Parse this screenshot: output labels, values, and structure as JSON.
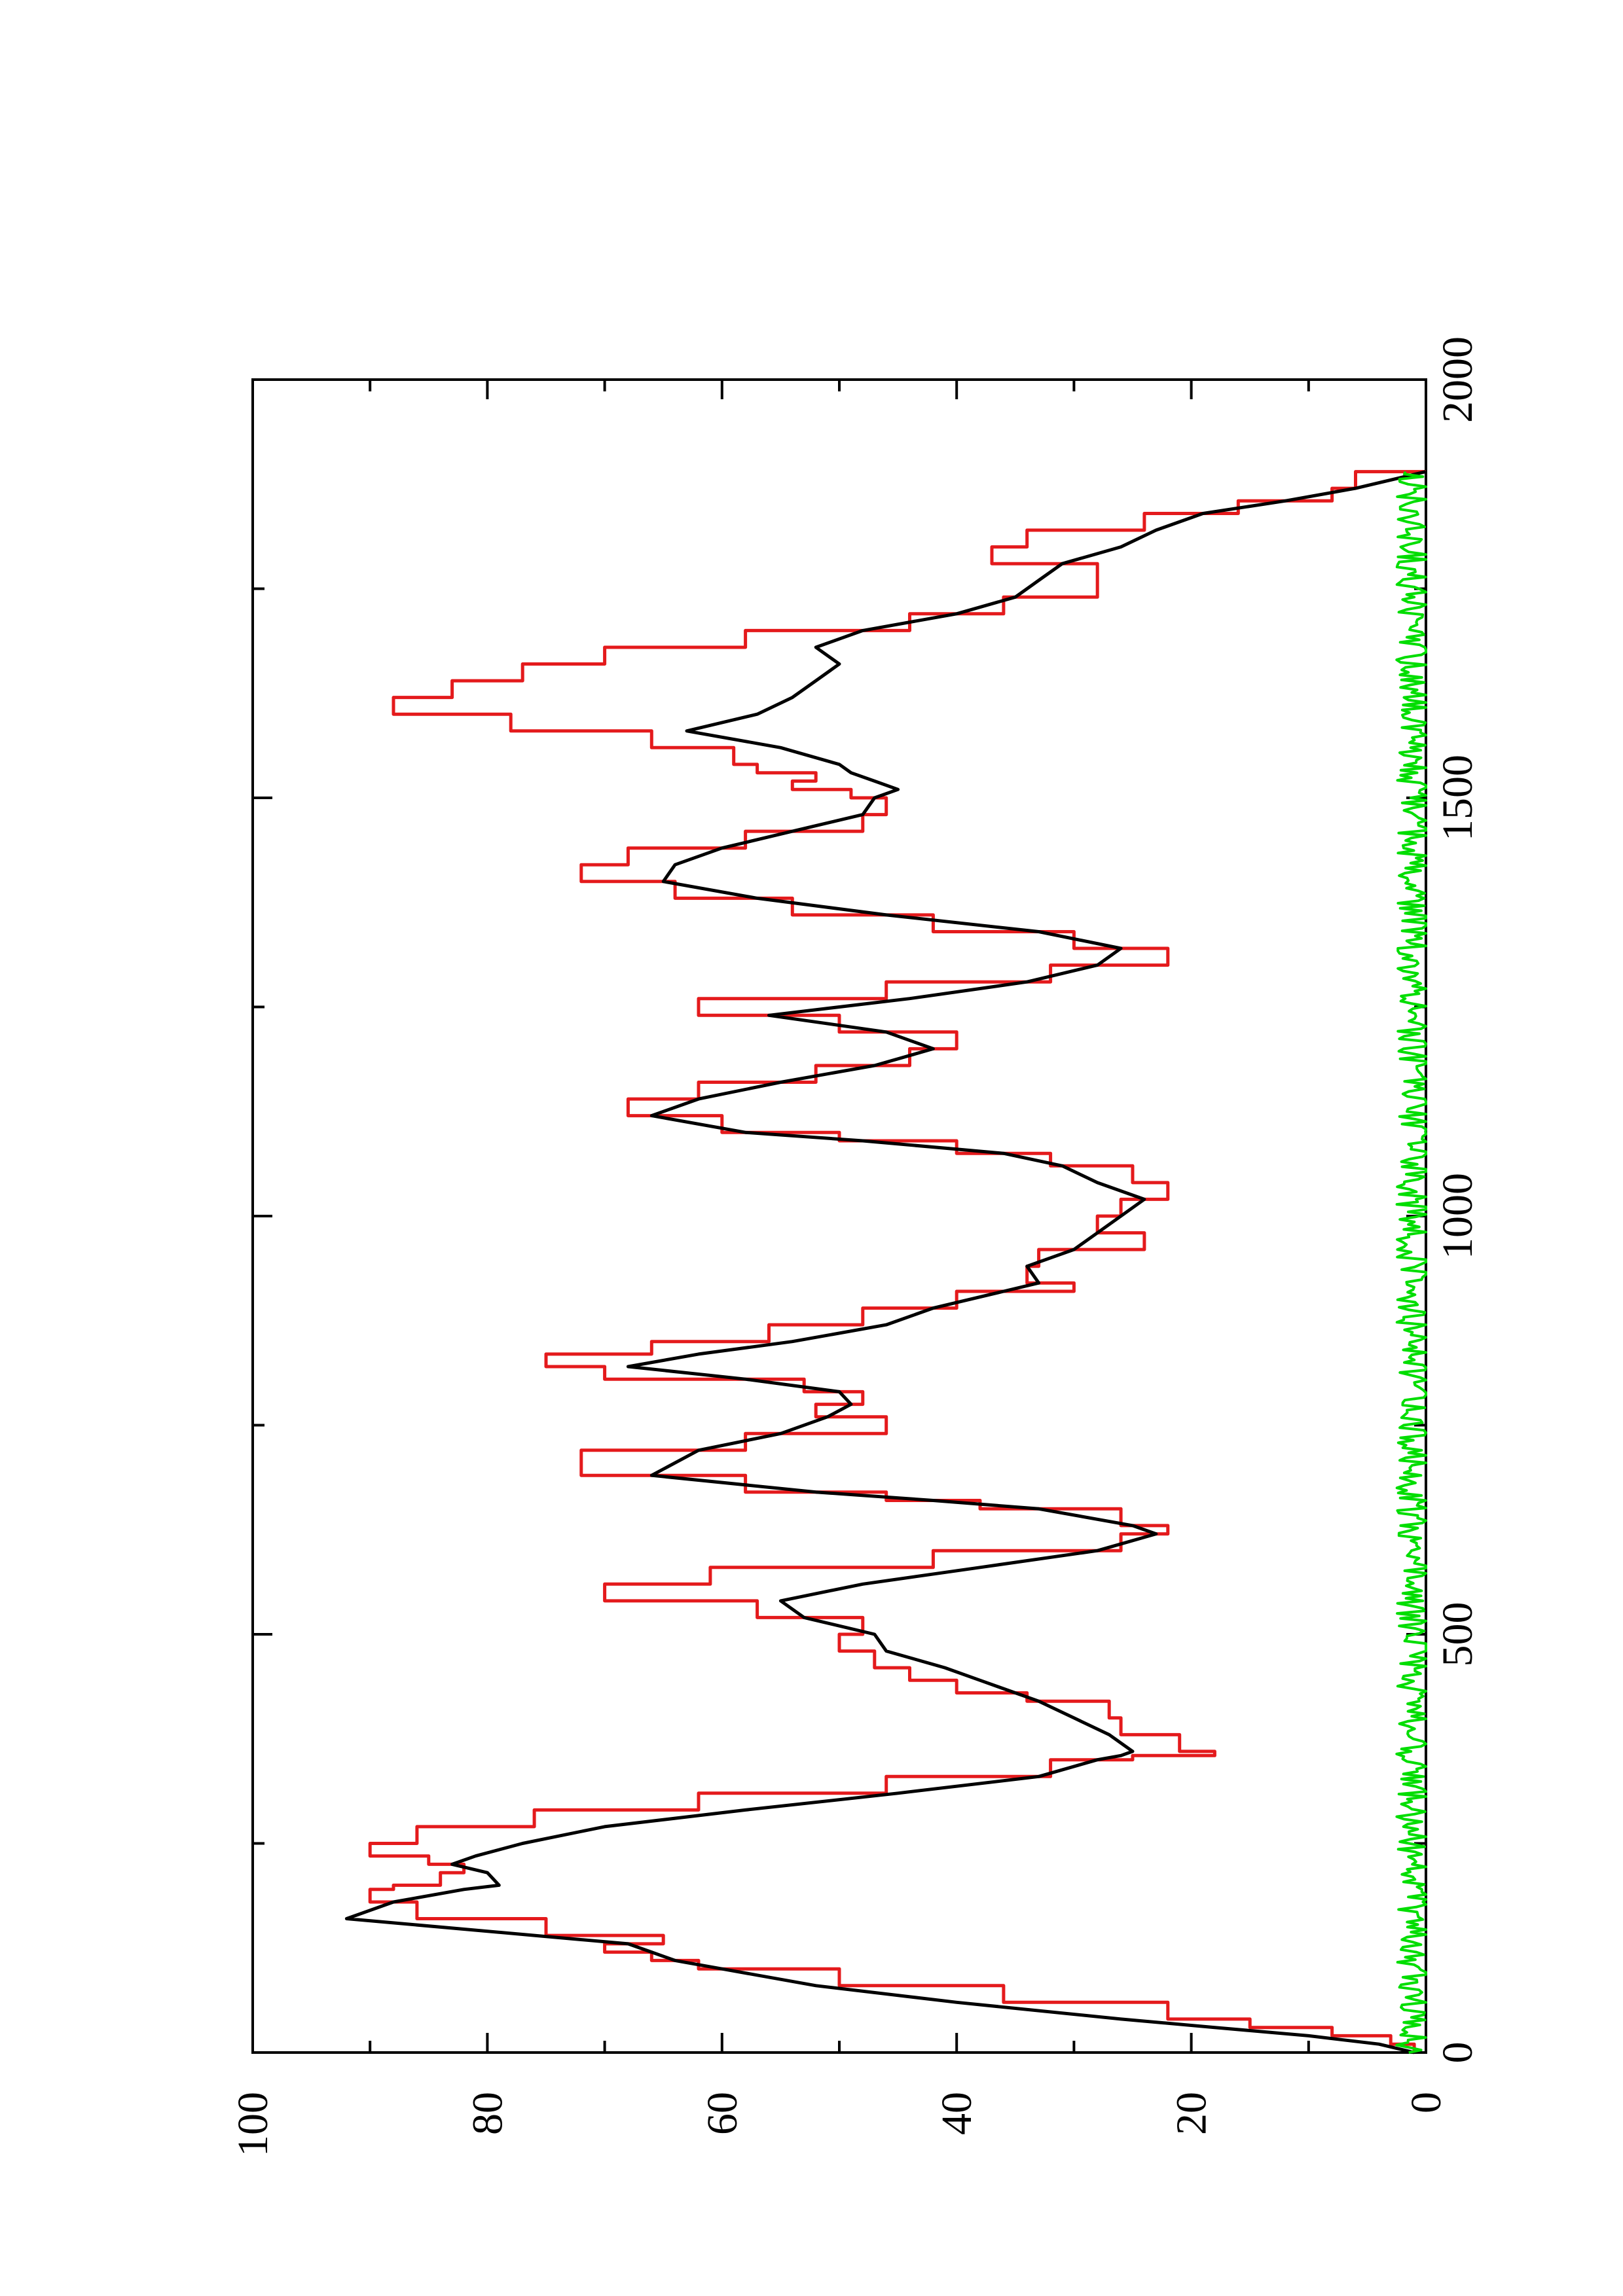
{
  "chart_data": {
    "type": "line",
    "title": "",
    "xlabel": "",
    "ylabel": "",
    "rotated_page": true,
    "xlim": [
      0,
      2000
    ],
    "ylim": [
      0,
      100
    ],
    "x_ticks": [
      0,
      500,
      1000,
      1500,
      2000
    ],
    "y_ticks": [
      0,
      20,
      40,
      60,
      80,
      100
    ],
    "x_tick_labels": [
      "0",
      "500",
      "1000",
      "1500",
      "2000"
    ],
    "y_tick_labels": [
      "0",
      "20",
      "40",
      "60",
      "80",
      "100"
    ],
    "grid": false,
    "legend": "none",
    "series": [
      {
        "color": "#e41a1c",
        "style": "step",
        "x": [
          0,
          10,
          20,
          30,
          40,
          60,
          80,
          100,
          110,
          120,
          130,
          140,
          160,
          180,
          195,
          200,
          215,
          225,
          235,
          250,
          270,
          290,
          310,
          330,
          350,
          355,
          360,
          380,
          400,
          420,
          430,
          445,
          460,
          480,
          500,
          520,
          540,
          560,
          580,
          600,
          620,
          630,
          650,
          660,
          670,
          690,
          720,
          740,
          760,
          775,
          790,
          805,
          820,
          835,
          850,
          870,
          890,
          910,
          920,
          940,
          960,
          980,
          1000,
          1020,
          1040,
          1060,
          1075,
          1090,
          1100,
          1120,
          1140,
          1160,
          1180,
          1200,
          1220,
          1240,
          1260,
          1280,
          1300,
          1320,
          1340,
          1360,
          1380,
          1400,
          1420,
          1440,
          1460,
          1480,
          1500,
          1510,
          1520,
          1530,
          1540,
          1560,
          1580,
          1600,
          1620,
          1640,
          1660,
          1680,
          1700,
          1720,
          1740,
          1760,
          1780,
          1800,
          1820,
          1840,
          1855,
          1870,
          1890
        ],
        "y": [
          1,
          3,
          8,
          15,
          22,
          36,
          50,
          62,
          66,
          70,
          65,
          75,
          86,
          90,
          88,
          84,
          82,
          85,
          90,
          86,
          76,
          62,
          46,
          32,
          25,
          18,
          21,
          26,
          27,
          34,
          40,
          44,
          47,
          50,
          48,
          57,
          70,
          61,
          42,
          26,
          22,
          26,
          38,
          46,
          58,
          72,
          58,
          46,
          52,
          48,
          53,
          70,
          75,
          66,
          56,
          48,
          40,
          30,
          34,
          33,
          24,
          28,
          26,
          22,
          25,
          32,
          40,
          50,
          60,
          68,
          62,
          52,
          44,
          40,
          50,
          62,
          46,
          32,
          22,
          30,
          42,
          54,
          64,
          72,
          68,
          58,
          48,
          46,
          49,
          54,
          52,
          57,
          59,
          66,
          78,
          88,
          83,
          77,
          70,
          58,
          44,
          36,
          28,
          28,
          37,
          34,
          24,
          16,
          8,
          6,
          0
        ]
      },
      {
        "color": "#000000",
        "style": "line",
        "x": [
          0,
          10,
          20,
          30,
          40,
          60,
          80,
          100,
          110,
          120,
          130,
          140,
          160,
          180,
          195,
          200,
          215,
          225,
          235,
          250,
          270,
          290,
          310,
          330,
          350,
          355,
          360,
          380,
          400,
          420,
          430,
          445,
          460,
          480,
          500,
          520,
          540,
          560,
          580,
          600,
          620,
          630,
          650,
          660,
          670,
          690,
          720,
          740,
          760,
          775,
          790,
          805,
          820,
          835,
          850,
          870,
          890,
          910,
          920,
          940,
          960,
          980,
          1000,
          1020,
          1040,
          1060,
          1075,
          1090,
          1100,
          1120,
          1140,
          1160,
          1180,
          1200,
          1220,
          1240,
          1260,
          1280,
          1300,
          1320,
          1340,
          1360,
          1380,
          1400,
          1420,
          1440,
          1460,
          1480,
          1500,
          1510,
          1520,
          1530,
          1540,
          1560,
          1580,
          1600,
          1620,
          1640,
          1660,
          1680,
          1700,
          1720,
          1740,
          1760,
          1780,
          1800,
          1820,
          1840,
          1855,
          1870,
          1890
        ],
        "y": [
          1,
          4,
          10,
          18,
          26,
          40,
          52,
          60,
          64,
          66,
          68,
          76,
          92,
          88,
          82,
          79,
          80,
          83,
          81,
          77,
          70,
          58,
          45,
          33,
          28,
          26,
          25,
          27,
          30,
          33,
          35,
          38,
          41,
          46,
          47,
          53,
          55,
          48,
          38,
          28,
          23,
          25,
          33,
          42,
          52,
          66,
          62,
          55,
          51,
          49,
          50,
          58,
          68,
          62,
          54,
          46,
          42,
          36,
          33,
          34,
          30,
          28,
          26,
          24,
          28,
          31,
          36,
          48,
          58,
          66,
          62,
          55,
          47,
          42,
          46,
          56,
          44,
          34,
          28,
          26,
          33,
          46,
          57,
          65,
          64,
          60,
          54,
          48,
          47,
          45,
          47,
          49,
          50,
          55,
          63,
          57,
          54,
          52,
          50,
          52,
          48,
          40,
          35,
          33,
          31,
          26,
          23,
          19,
          12,
          6,
          0
        ]
      },
      {
        "color": "#00dd00",
        "style": "noise",
        "x": [
          0,
          2000
        ],
        "y_level": 1,
        "y_jitter": 1.5,
        "x_end": 1890
      }
    ]
  }
}
